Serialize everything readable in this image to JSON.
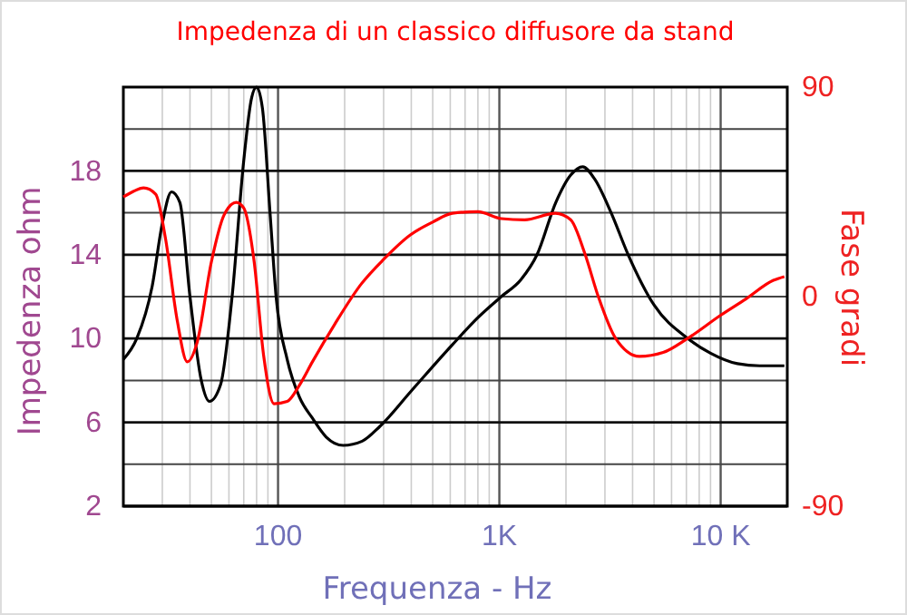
{
  "chart_data": {
    "type": "line",
    "title": "Impedenza di un classico diffusore da stand",
    "xlabel": "Frequenza - Hz",
    "ylabel": "Impedenza ohm",
    "y2label": "Fase  gradi",
    "log": "x",
    "grid": true,
    "marker": "none",
    "line_style": "solid",
    "xlim": [
      20,
      20000
    ],
    "xticks": [
      {
        "value": 20,
        "label": null
      },
      {
        "value": 30,
        "label": null
      },
      {
        "value": 40,
        "label": null
      },
      {
        "value": 50,
        "label": null
      },
      {
        "value": 60,
        "label": null
      },
      {
        "value": 70,
        "label": null
      },
      {
        "value": 80,
        "label": null
      },
      {
        "value": 90,
        "label": null
      },
      100,
      {
        "value": 200,
        "label": null
      },
      {
        "value": 300,
        "label": null
      },
      {
        "value": 400,
        "label": null
      },
      {
        "value": 500,
        "label": null
      },
      {
        "value": 600,
        "label": null
      },
      {
        "value": 700,
        "label": null
      },
      {
        "value": 800,
        "label": null
      },
      {
        "value": 900,
        "label": null
      },
      {
        "value": 1000,
        "label": "1K"
      },
      {
        "value": 2000,
        "label": null
      },
      {
        "value": 3000,
        "label": null
      },
      {
        "value": 4000,
        "label": null
      },
      {
        "value": 5000,
        "label": null
      },
      {
        "value": 6000,
        "label": null
      },
      {
        "value": 7000,
        "label": null
      },
      {
        "value": 8000,
        "label": null
      },
      {
        "value": 9000,
        "label": null
      },
      {
        "value": 10000,
        "label": "10 K"
      },
      {
        "value": 20000,
        "label": null
      }
    ],
    "ylim": [
      2,
      22
    ],
    "yticks": [
      2,
      {
        "value": 4,
        "label": null
      },
      6,
      {
        "value": 8,
        "label": null
      },
      10,
      {
        "value": 12,
        "label": null
      },
      14,
      {
        "value": 16,
        "label": null
      },
      18,
      {
        "value": 20,
        "label": null
      },
      {
        "value": 22,
        "label": null
      }
    ],
    "y2lim": [
      -90,
      90
    ],
    "y2ticks": [
      -90,
      0,
      90
    ],
    "series": [
      {
        "color": "#000000",
        "x": [
          20,
          23,
          27,
          30,
          33,
          36,
          40,
          45,
          49,
          55,
          62,
          70,
          76,
          80,
          85,
          92,
          98,
          110,
          125,
          143,
          165,
          197,
          240,
          288,
          400,
          613,
          800,
          1020,
          1250,
          1480,
          1800,
          2100,
          2380,
          2700,
          3200,
          3820,
          5000,
          7110,
          9000,
          11900,
          15000,
          19400
        ],
        "values": [
          9.0,
          10.0,
          12.5,
          15.5,
          17.0,
          16.5,
          12.0,
          8.0,
          7.0,
          7.8,
          12.0,
          18.5,
          21.5,
          22,
          21,
          16,
          12.0,
          9.0,
          7.2,
          6.2,
          5.3,
          4.9,
          5.1,
          5.8,
          7.5,
          9.7,
          11.0,
          12.0,
          12.8,
          14.0,
          16.5,
          17.8,
          18.2,
          17.6,
          16.0,
          14.0,
          11.6,
          10.0,
          9.3,
          8.8,
          8.7,
          8.7
        ]
      },
      {
        "color": "#ff0000",
        "axis": "y2",
        "x": [
          20,
          22,
          24.7,
          28,
          31,
          35,
          38.9,
          43,
          50,
          57,
          64.8,
          70,
          78,
          86,
          96,
          110,
          125,
          143,
          180,
          238,
          300,
          396,
          500,
          613,
          800,
          1020,
          1300,
          1790,
          2100,
          2430,
          2800,
          3350,
          4290,
          5500,
          7110,
          10000,
          13000,
          17300,
          19400
        ],
        "values": [
          42.8,
          45,
          46.7,
          44,
          25,
          -10,
          -28,
          -20,
          15,
          35,
          40.5,
          38,
          15,
          -25,
          -46,
          -45,
          -38,
          -28,
          -12,
          5.5,
          16,
          26.5,
          32,
          35.8,
          36.5,
          33.5,
          33,
          35.8,
          33,
          18.7,
          0,
          -17.9,
          -25.7,
          -24,
          -17.9,
          -8,
          -1,
          7.0,
          8.6
        ]
      }
    ]
  }
}
